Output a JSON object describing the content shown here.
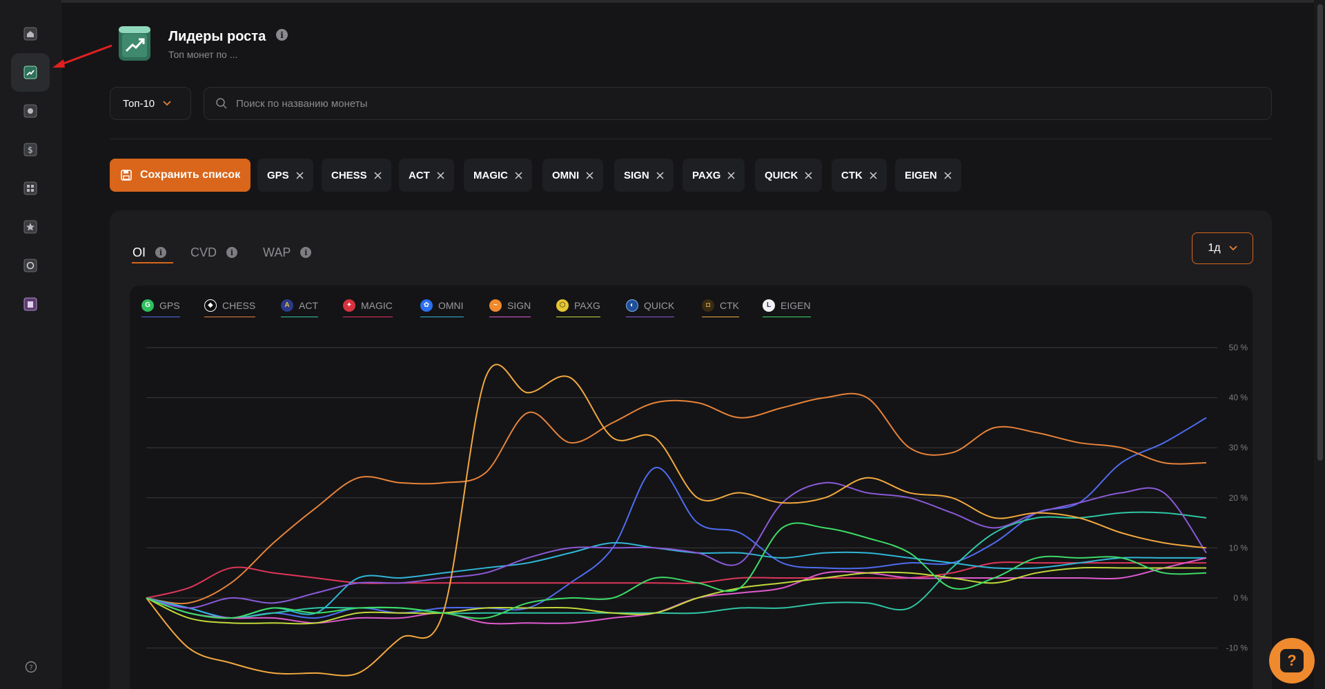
{
  "header": {
    "title": "Лидеры роста",
    "subtitle": "Топ монет по ..."
  },
  "filters": {
    "top_select": "Топ-10",
    "search_placeholder": "Поиск по названию монеты"
  },
  "save_label": "Сохранить список",
  "chips": [
    "GPS",
    "CHESS",
    "ACT",
    "MAGIC",
    "OMNI",
    "SIGN",
    "PAXG",
    "QUICK",
    "CTK",
    "EIGEN"
  ],
  "tabs": [
    {
      "label": "OI",
      "active": true
    },
    {
      "label": "CVD",
      "active": false
    },
    {
      "label": "WAP",
      "active": false
    }
  ],
  "period": "1д",
  "chart_data": {
    "type": "line",
    "title": "",
    "y_ticks": [
      "50 %",
      "40 %",
      "30 %",
      "20 %",
      "10 %",
      "0 %",
      "-10 %"
    ],
    "ylim": [
      -15,
      50
    ],
    "grid": true,
    "legend_position": "top-left",
    "x_count": 26,
    "series": [
      {
        "name": "GPS",
        "color": "#4f6cf0",
        "values": [
          0,
          -2,
          -4,
          -3,
          -4,
          -2,
          -3,
          -2,
          -2,
          -2,
          3,
          10,
          26,
          15,
          13,
          7,
          6,
          6,
          7,
          7,
          11,
          17,
          19,
          27,
          31,
          36
        ]
      },
      {
        "name": "CHESS",
        "color": "#e8833a",
        "values": [
          0,
          -1,
          3,
          11,
          18,
          24,
          23,
          23,
          25,
          37,
          31,
          35,
          39,
          39,
          36,
          38,
          40,
          40,
          30,
          29,
          34,
          33,
          31,
          30,
          27,
          27
        ]
      },
      {
        "name": "ACT",
        "color": "#2fc6a4",
        "values": [
          0,
          -3,
          -4,
          -3,
          -2,
          -2,
          -2,
          -3,
          -3,
          -3,
          -3,
          -3,
          -3,
          -3,
          -2,
          -2,
          -1,
          -1,
          -2,
          6,
          13,
          16,
          16,
          17,
          17,
          16
        ]
      },
      {
        "name": "MAGIC",
        "color": "#e0365a",
        "values": [
          0,
          2,
          6,
          5,
          4,
          3,
          3,
          3,
          3,
          3,
          3,
          3,
          3,
          3,
          4,
          4,
          4,
          4,
          4,
          5,
          7,
          7,
          7,
          7,
          7,
          7
        ]
      },
      {
        "name": "OMNI",
        "color": "#31b6d8",
        "values": [
          0,
          -2,
          -4,
          -2,
          -3,
          4,
          4,
          5,
          6,
          7,
          9,
          11,
          10,
          9,
          9,
          8,
          9,
          9,
          8,
          7,
          6,
          6,
          7,
          8,
          8,
          8
        ]
      },
      {
        "name": "SIGN",
        "color": "#e15bd0",
        "values": [
          0,
          -3,
          -4,
          -4,
          -5,
          -4,
          -4,
          -3,
          -5,
          -5,
          -5,
          -4,
          -3,
          0,
          1,
          2,
          5,
          5,
          4,
          4,
          4,
          4,
          4,
          4,
          6,
          8
        ]
      },
      {
        "name": "PAXG",
        "color": "#c2d93a",
        "values": [
          0,
          -4,
          -5,
          -5,
          -5,
          -3,
          -3,
          -3,
          -2,
          -2,
          -2,
          -3,
          -3,
          0,
          2,
          3,
          4,
          5,
          5,
          4,
          3,
          5,
          6,
          6,
          6,
          6
        ]
      },
      {
        "name": "QUICK",
        "color": "#8a5ad8",
        "values": [
          0,
          -2,
          0,
          -1,
          1,
          3,
          3,
          4,
          5,
          8,
          10,
          10,
          10,
          9,
          7,
          19,
          23,
          21,
          20,
          17,
          14,
          17,
          19,
          21,
          21,
          9
        ]
      },
      {
        "name": "CTK",
        "color": "#f3a93f",
        "values": [
          0,
          -10,
          -13,
          -15,
          -15,
          -15,
          -8,
          -3,
          44,
          41,
          44,
          32,
          32,
          20,
          21,
          19,
          20,
          24,
          21,
          20,
          16,
          17,
          16,
          13,
          11,
          10
        ]
      },
      {
        "name": "EIGEN",
        "color": "#3ddd68",
        "values": [
          0,
          -3,
          -4,
          -2,
          -3,
          -2,
          -2,
          -3,
          -4,
          -1,
          0,
          0,
          4,
          3,
          2,
          14,
          14,
          12,
          9,
          2,
          4,
          8,
          8,
          8,
          5,
          5
        ]
      }
    ]
  }
}
